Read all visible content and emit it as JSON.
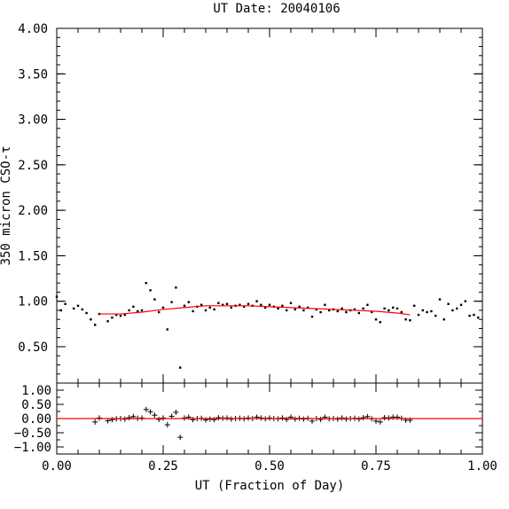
{
  "chart_data": [
    {
      "type": "scatter",
      "title": "UT Date: 20040106",
      "ylabel": "350 micron CSO-τ",
      "xlabel": "",
      "xlim": [
        0,
        1
      ],
      "ylim": [
        0.1,
        4.0
      ],
      "yticks": [
        "0.50",
        "1.00",
        "1.50",
        "2.00",
        "2.50",
        "3.00",
        "3.50",
        "4.00"
      ],
      "series": [
        {
          "marker": "dot",
          "points": [
            [
              0.0,
              1.05
            ],
            [
              0.01,
              0.9
            ],
            [
              0.02,
              0.97
            ],
            [
              0.04,
              0.92
            ],
            [
              0.05,
              0.95
            ],
            [
              0.06,
              0.91
            ],
            [
              0.07,
              0.87
            ],
            [
              0.08,
              0.8
            ],
            [
              0.09,
              0.74
            ],
            [
              0.1,
              0.86
            ],
            [
              0.12,
              0.78
            ],
            [
              0.13,
              0.82
            ],
            [
              0.14,
              0.85
            ],
            [
              0.15,
              0.84
            ],
            [
              0.16,
              0.85
            ],
            [
              0.17,
              0.9
            ],
            [
              0.18,
              0.94
            ],
            [
              0.19,
              0.89
            ],
            [
              0.2,
              0.9
            ],
            [
              0.21,
              1.2
            ],
            [
              0.22,
              1.12
            ],
            [
              0.23,
              1.02
            ],
            [
              0.24,
              0.88
            ],
            [
              0.25,
              0.93
            ],
            [
              0.26,
              0.69
            ],
            [
              0.27,
              0.99
            ],
            [
              0.28,
              1.15
            ],
            [
              0.29,
              0.27
            ],
            [
              0.3,
              0.95
            ],
            [
              0.31,
              0.99
            ],
            [
              0.32,
              0.89
            ],
            [
              0.33,
              0.94
            ],
            [
              0.34,
              0.96
            ],
            [
              0.35,
              0.9
            ],
            [
              0.36,
              0.93
            ],
            [
              0.37,
              0.91
            ],
            [
              0.38,
              0.98
            ],
            [
              0.39,
              0.96
            ],
            [
              0.4,
              0.97
            ],
            [
              0.41,
              0.93
            ],
            [
              0.42,
              0.95
            ],
            [
              0.43,
              0.96
            ],
            [
              0.44,
              0.94
            ],
            [
              0.45,
              0.97
            ],
            [
              0.46,
              0.95
            ],
            [
              0.47,
              1.0
            ],
            [
              0.48,
              0.96
            ],
            [
              0.49,
              0.93
            ],
            [
              0.5,
              0.96
            ],
            [
              0.51,
              0.94
            ],
            [
              0.52,
              0.92
            ],
            [
              0.53,
              0.95
            ],
            [
              0.54,
              0.9
            ],
            [
              0.55,
              0.98
            ],
            [
              0.56,
              0.91
            ],
            [
              0.57,
              0.94
            ],
            [
              0.58,
              0.9
            ],
            [
              0.59,
              0.93
            ],
            [
              0.6,
              0.83
            ],
            [
              0.61,
              0.91
            ],
            [
              0.62,
              0.88
            ],
            [
              0.63,
              0.96
            ],
            [
              0.64,
              0.9
            ],
            [
              0.65,
              0.91
            ],
            [
              0.66,
              0.89
            ],
            [
              0.67,
              0.92
            ],
            [
              0.68,
              0.88
            ],
            [
              0.69,
              0.9
            ],
            [
              0.7,
              0.91
            ],
            [
              0.71,
              0.87
            ],
            [
              0.72,
              0.92
            ],
            [
              0.73,
              0.96
            ],
            [
              0.74,
              0.88
            ],
            [
              0.75,
              0.8
            ],
            [
              0.76,
              0.77
            ],
            [
              0.77,
              0.92
            ],
            [
              0.78,
              0.9
            ],
            [
              0.79,
              0.93
            ],
            [
              0.8,
              0.92
            ],
            [
              0.81,
              0.88
            ],
            [
              0.82,
              0.8
            ],
            [
              0.83,
              0.79
            ],
            [
              0.84,
              0.95
            ],
            [
              0.85,
              0.85
            ],
            [
              0.86,
              0.9
            ],
            [
              0.87,
              0.88
            ],
            [
              0.88,
              0.89
            ],
            [
              0.89,
              0.84
            ],
            [
              0.9,
              1.02
            ],
            [
              0.91,
              0.8
            ],
            [
              0.92,
              0.97
            ],
            [
              0.93,
              0.9
            ],
            [
              0.94,
              0.92
            ],
            [
              0.95,
              0.96
            ],
            [
              0.96,
              1.0
            ],
            [
              0.97,
              0.84
            ],
            [
              0.98,
              0.85
            ],
            [
              0.99,
              0.82
            ]
          ]
        },
        {
          "marker": "line",
          "color": "#ff0000",
          "points": [
            [
              0.1,
              0.86
            ],
            [
              0.15,
              0.86
            ],
            [
              0.2,
              0.88
            ],
            [
              0.25,
              0.91
            ],
            [
              0.3,
              0.93
            ],
            [
              0.35,
              0.95
            ],
            [
              0.4,
              0.95
            ],
            [
              0.45,
              0.95
            ],
            [
              0.5,
              0.94
            ],
            [
              0.55,
              0.93
            ],
            [
              0.6,
              0.92
            ],
            [
              0.65,
              0.91
            ],
            [
              0.7,
              0.9
            ],
            [
              0.75,
              0.89
            ],
            [
              0.8,
              0.87
            ],
            [
              0.83,
              0.85
            ]
          ]
        }
      ]
    },
    {
      "type": "scatter",
      "title": "",
      "xlabel": "UT (Fraction of Day)",
      "ylabel": "",
      "xlim": [
        0,
        1
      ],
      "ylim": [
        -1.25,
        1.25
      ],
      "xticks": [
        "0.00",
        "0.25",
        "0.50",
        "0.75",
        "1.00"
      ],
      "yticks": [
        "1.00",
        "0.50",
        "0.00",
        "−0.50",
        "−1.00"
      ],
      "series": [
        {
          "marker": "plus",
          "points": [
            [
              0.09,
              -0.12
            ],
            [
              0.1,
              0.02
            ],
            [
              0.12,
              -0.08
            ],
            [
              0.13,
              -0.04
            ],
            [
              0.14,
              -0.01
            ],
            [
              0.15,
              0.0
            ],
            [
              0.16,
              -0.02
            ],
            [
              0.17,
              0.03
            ],
            [
              0.18,
              0.07
            ],
            [
              0.19,
              0.01
            ],
            [
              0.2,
              0.02
            ],
            [
              0.21,
              0.32
            ],
            [
              0.22,
              0.24
            ],
            [
              0.23,
              0.12
            ],
            [
              0.24,
              -0.03
            ],
            [
              0.25,
              0.02
            ],
            [
              0.26,
              -0.22
            ],
            [
              0.27,
              0.08
            ],
            [
              0.28,
              0.22
            ],
            [
              0.29,
              -0.66
            ],
            [
              0.3,
              0.02
            ],
            [
              0.31,
              0.05
            ],
            [
              0.32,
              -0.04
            ],
            [
              0.33,
              0.0
            ],
            [
              0.34,
              0.01
            ],
            [
              0.35,
              -0.05
            ],
            [
              0.36,
              -0.02
            ],
            [
              0.37,
              -0.04
            ],
            [
              0.38,
              0.03
            ],
            [
              0.39,
              0.01
            ],
            [
              0.4,
              0.02
            ],
            [
              0.41,
              -0.02
            ],
            [
              0.42,
              0.0
            ],
            [
              0.43,
              0.01
            ],
            [
              0.44,
              -0.01
            ],
            [
              0.45,
              0.02
            ],
            [
              0.46,
              0.0
            ],
            [
              0.47,
              0.05
            ],
            [
              0.48,
              0.02
            ],
            [
              0.49,
              -0.01
            ],
            [
              0.5,
              0.02
            ],
            [
              0.51,
              0.0
            ],
            [
              0.52,
              -0.01
            ],
            [
              0.53,
              0.02
            ],
            [
              0.54,
              -0.03
            ],
            [
              0.55,
              0.05
            ],
            [
              0.56,
              -0.02
            ],
            [
              0.57,
              0.01
            ],
            [
              0.58,
              -0.02
            ],
            [
              0.59,
              0.01
            ],
            [
              0.6,
              -0.09
            ],
            [
              0.61,
              0.0
            ],
            [
              0.62,
              -0.03
            ],
            [
              0.63,
              0.05
            ],
            [
              0.64,
              -0.01
            ],
            [
              0.65,
              0.0
            ],
            [
              0.66,
              -0.02
            ],
            [
              0.67,
              0.02
            ],
            [
              0.68,
              -0.02
            ],
            [
              0.69,
              0.0
            ],
            [
              0.7,
              0.01
            ],
            [
              0.71,
              -0.02
            ],
            [
              0.72,
              0.03
            ],
            [
              0.73,
              0.07
            ],
            [
              0.74,
              -0.01
            ],
            [
              0.75,
              -0.09
            ],
            [
              0.76,
              -0.12
            ],
            [
              0.77,
              0.03
            ],
            [
              0.78,
              0.02
            ],
            [
              0.79,
              0.05
            ],
            [
              0.8,
              0.05
            ],
            [
              0.81,
              0.01
            ],
            [
              0.82,
              -0.06
            ],
            [
              0.83,
              -0.06
            ]
          ]
        },
        {
          "marker": "line",
          "color": "#ff0000",
          "points": [
            [
              0.0,
              0.0
            ],
            [
              1.0,
              0.0
            ]
          ]
        }
      ]
    }
  ]
}
